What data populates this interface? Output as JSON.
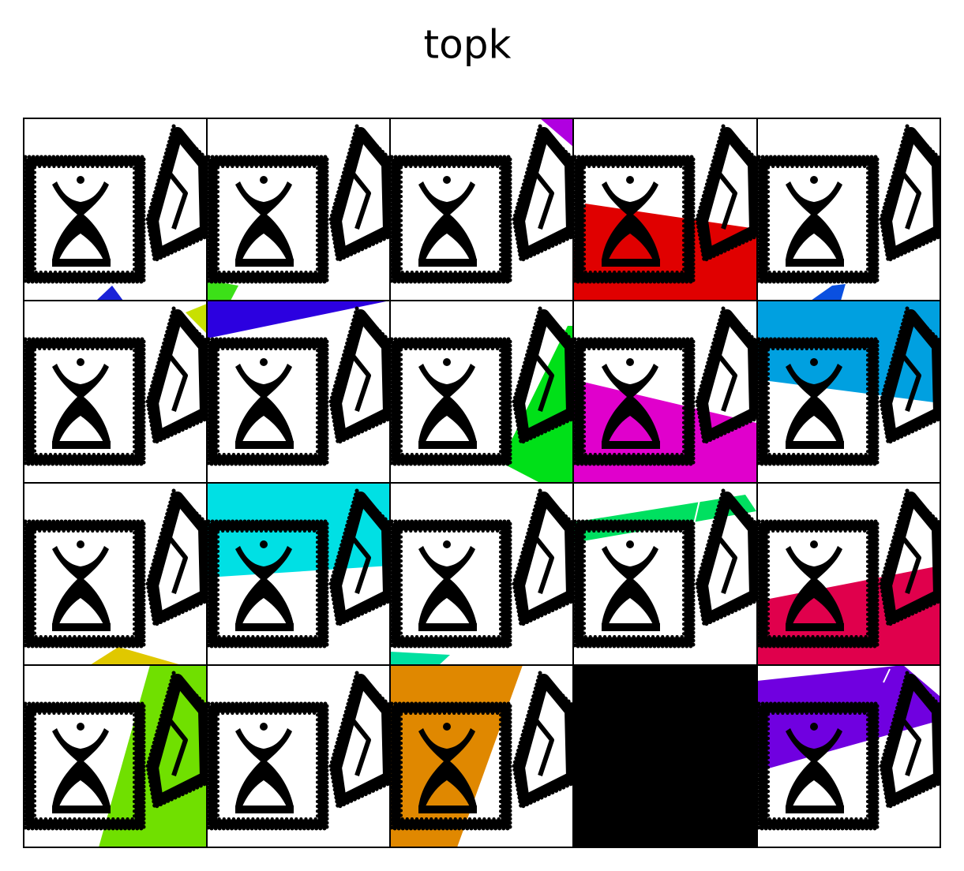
{
  "title": "topk"
}
